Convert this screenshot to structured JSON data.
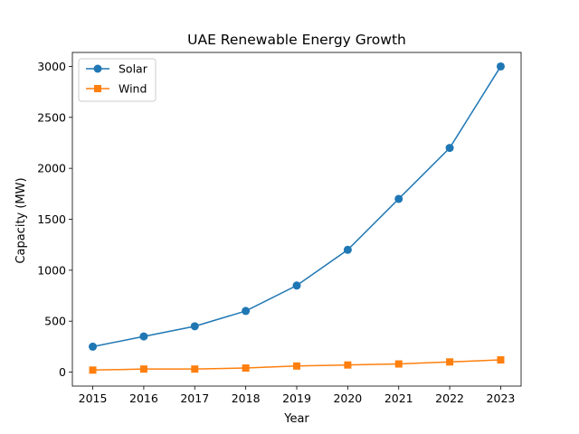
{
  "chart_data": {
    "type": "line",
    "title": "UAE Renewable Energy Growth",
    "xlabel": "Year",
    "ylabel": "Capacity (MW)",
    "x": [
      2015,
      2016,
      2017,
      2018,
      2019,
      2020,
      2021,
      2022,
      2023
    ],
    "xlim": [
      2014.6,
      2023.4
    ],
    "ylim": [
      -137,
      3137
    ],
    "yticks": [
      0,
      500,
      1000,
      1500,
      2000,
      2500,
      3000
    ],
    "grid": false,
    "legend_position": "top-left",
    "series": [
      {
        "name": "Solar",
        "values": [
          250,
          350,
          450,
          600,
          850,
          1200,
          1700,
          2200,
          3000
        ],
        "color": "#1f77b4",
        "marker": "circle"
      },
      {
        "name": "Wind",
        "values": [
          20,
          30,
          30,
          40,
          60,
          70,
          80,
          100,
          120
        ],
        "color": "#ff7f0e",
        "marker": "square"
      }
    ]
  }
}
